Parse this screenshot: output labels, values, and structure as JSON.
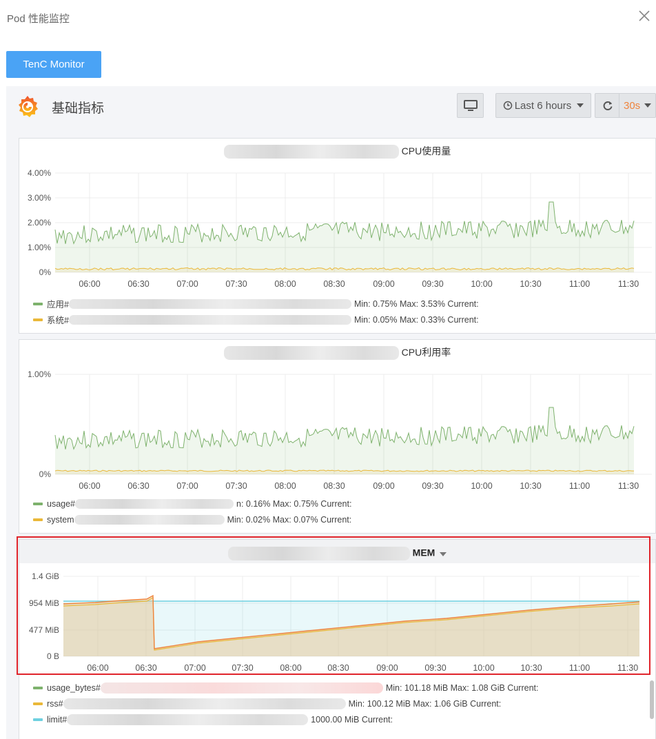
{
  "window": {
    "title": "Pod 性能监控"
  },
  "toolbar": {
    "tenc_button": "TenC Monitor",
    "time_range": "Last 6 hours",
    "refresh_interval": "30s"
  },
  "dashboard": {
    "title": "基础指标"
  },
  "icons": {
    "close": "close-icon",
    "logo": "grafana-logo-icon",
    "tv": "tv-mode-icon",
    "clock": "clock-icon",
    "refresh": "refresh-icon",
    "caret": "caret-down-icon"
  },
  "colors": {
    "green": "#7eb26d",
    "yellow": "#eab839",
    "orange": "#ef843c",
    "cyan": "#6ed0e0",
    "button_blue": "#4aa3f5",
    "highlight_red": "#e0242b"
  },
  "x_ticks": [
    "06:00",
    "06:30",
    "07:00",
    "07:30",
    "08:00",
    "08:30",
    "09:00",
    "09:30",
    "10:00",
    "10:30",
    "11:00",
    "11:30"
  ],
  "panels": {
    "cpu_usage": {
      "title": "CPU使用量",
      "y_ticks": [
        "4.00%",
        "3.00%",
        "2.00%",
        "1.00%",
        "0%"
      ],
      "legend": [
        {
          "name": "应用#",
          "stats": "Min: 0.75%  Max: 3.53%  Current:",
          "color": "#7eb26d"
        },
        {
          "name": "系统#",
          "stats": "Min: 0.05%  Max: 0.33%  Current:",
          "color": "#eab839"
        }
      ]
    },
    "cpu_util": {
      "title": "CPU利用率",
      "y_ticks": [
        "1.00%",
        "0%"
      ],
      "legend": [
        {
          "name": "usage#",
          "stats": "n: 0.16%  Max: 0.75%  Current:",
          "color": "#7eb26d"
        },
        {
          "name": "system",
          "stats": "Min: 0.02%  Max: 0.07%  Current:",
          "color": "#eab839"
        }
      ]
    },
    "mem": {
      "title": "MEM",
      "y_ticks": [
        "1.4 GiB",
        "954 MiB",
        "477 MiB",
        "0 B"
      ],
      "legend": [
        {
          "name": "usage_bytes#",
          "stats": "Min: 101.18 MiB  Max: 1.08 GiB  Current:",
          "color": "#7eb26d"
        },
        {
          "name": "rss#",
          "stats": "Min: 100.12 MiB  Max: 1.06 GiB  Current:",
          "color": "#eab839"
        },
        {
          "name": "limit#",
          "stats": "1000.00 MiB  Current:",
          "color": "#6ed0e0"
        }
      ]
    }
  }
}
